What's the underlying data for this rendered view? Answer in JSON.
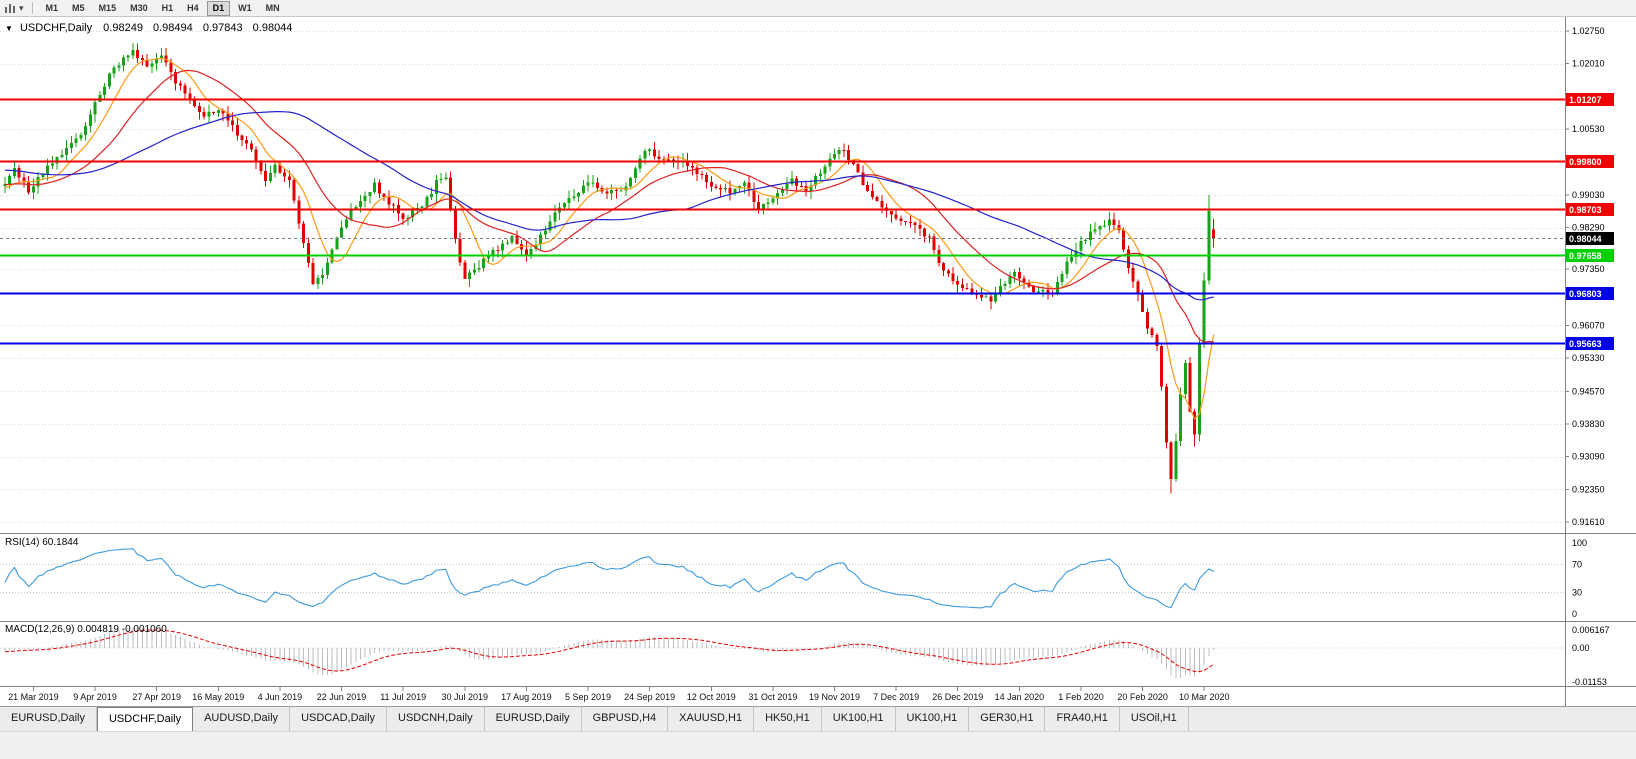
{
  "icons": {
    "collapse_arrow": "▼",
    "dropdown_caret": "▾"
  },
  "toolbar": {
    "timeframes": [
      "M1",
      "M5",
      "M15",
      "M30",
      "H1",
      "H4",
      "D1",
      "W1",
      "MN"
    ],
    "active_timeframe": "D1"
  },
  "chart": {
    "title": "USDCHF,Daily",
    "open": "0.98249",
    "high": "0.98494",
    "low": "0.97843",
    "close": "0.98044"
  },
  "rsi": {
    "label": "RSI(14) 60.1844",
    "period": 14,
    "last_value": 60.1844,
    "axis_labels": [
      "100",
      "70",
      "30",
      "0"
    ],
    "line_color": "#3E9ADE"
  },
  "macd": {
    "label": "MACD(12,26,9) 0.004819 -0.001060",
    "params": [
      12,
      26,
      9
    ],
    "last_value": 0.004819,
    "last_signal": -0.00106,
    "axis_labels": [
      "0.006167",
      "0.00",
      "-0.01153"
    ],
    "histogram_color": "#bdbdbd",
    "signal_color": "#e00000"
  },
  "tabs": {
    "active": "USDCHF,Daily",
    "items": [
      "EURUSD,Daily",
      "USDCHF,Daily",
      "AUDUSD,Daily",
      "USDCAD,Daily",
      "USDCNH,Daily",
      "EURUSD,Daily",
      "GBPUSD,H4",
      "XAUUSD,H1",
      "HK50,H1",
      "UK100,H1",
      "UK100,H1",
      "GER30,H1",
      "FRA40,H1",
      "USOil,H1"
    ]
  },
  "chart_data": {
    "type": "candlestick",
    "symbol": "USDCHF",
    "period": "Daily",
    "bar_count": 256,
    "bull_color": "#17A317",
    "bear_color": "#E00000",
    "price_ticks": [
      "1.02750",
      "1.02010",
      "1.00530",
      "0.99030",
      "0.98290",
      "0.97350",
      "0.96070",
      "0.95330",
      "0.94570",
      "0.93830",
      "0.93090",
      "0.92350",
      "0.91610"
    ],
    "date_labels": [
      "21 Mar 2019",
      "9 Apr 2019",
      "27 Apr 2019",
      "16 May 2019",
      "4 Jun 2019",
      "22 Jun 2019",
      "11 Jul 2019",
      "30 Jul 2019",
      "17 Aug 2019",
      "5 Sep 2019",
      "24 Sep 2019",
      "12 Oct 2019",
      "31 Oct 2019",
      "19 Nov 2019",
      "7 Dec 2019",
      "26 Dec 2019",
      "14 Jan 2020",
      "1 Feb 2020",
      "20 Feb 2020",
      "10 Mar 2020"
    ],
    "levels": [
      {
        "price": 1.01207,
        "label": "1.01207",
        "color": "#F00000",
        "width": 2,
        "style": "solid"
      },
      {
        "price": 0.998,
        "label": "0.99800",
        "color": "#F00000",
        "width": 2,
        "style": "solid"
      },
      {
        "price": 0.98703,
        "label": "0.98703",
        "color": "#F00000",
        "width": 2,
        "style": "solid"
      },
      {
        "price": 0.98044,
        "label": "0.98044",
        "color": "#000000",
        "width": 1,
        "style": "current"
      },
      {
        "price": 0.97658,
        "label": "0.97658",
        "color": "#00D000",
        "width": 2,
        "style": "solid"
      },
      {
        "price": 0.96803,
        "label": "0.96803",
        "color": "#0000E8",
        "width": 2,
        "style": "solid"
      },
      {
        "price": 0.95663,
        "label": "0.95663",
        "color": "#0000E8",
        "width": 2,
        "style": "solid"
      }
    ],
    "ma_lines": [
      {
        "period": 8,
        "color": "#FF9914"
      },
      {
        "period": 20,
        "color": "#DD2222"
      },
      {
        "period": 50,
        "color": "#2323CC"
      }
    ],
    "last_bar": {
      "open": 0.98249,
      "high": 0.98494,
      "low": 0.97843,
      "close": 0.98044
    },
    "prehistory_anchors": [
      [
        -60,
        0.9975
      ],
      [
        -40,
        1.0005
      ],
      [
        -20,
        0.9945
      ],
      [
        -5,
        0.9915
      ]
    ],
    "anchors": [
      [
        0,
        0.9925
      ],
      [
        2,
        0.9958
      ],
      [
        5,
        0.9908
      ],
      [
        8,
        0.9952
      ],
      [
        11,
        0.9988
      ],
      [
        13,
        1.0005
      ],
      [
        16,
        1.0042
      ],
      [
        19,
        1.0108
      ],
      [
        22,
        1.0172
      ],
      [
        25,
        1.0218
      ],
      [
        27,
        1.0232
      ],
      [
        30,
        1.0188
      ],
      [
        33,
        1.0215
      ],
      [
        36,
        1.0162
      ],
      [
        39,
        1.0118
      ],
      [
        42,
        1.0082
      ],
      [
        45,
        1.0096
      ],
      [
        49,
        1.0042
      ],
      [
        52,
        1.0006
      ],
      [
        55,
        0.9932
      ],
      [
        57,
        0.9966
      ],
      [
        60,
        0.9936
      ],
      [
        63,
        0.9792
      ],
      [
        65,
        0.97
      ],
      [
        67,
        0.9726
      ],
      [
        70,
        0.9802
      ],
      [
        73,
        0.9868
      ],
      [
        76,
        0.9906
      ],
      [
        78,
        0.9926
      ],
      [
        81,
        0.9886
      ],
      [
        84,
        0.9852
      ],
      [
        88,
        0.9876
      ],
      [
        91,
        0.993
      ],
      [
        93,
        0.9946
      ],
      [
        95,
        0.9802
      ],
      [
        97,
        0.9712
      ],
      [
        100,
        0.9742
      ],
      [
        104,
        0.9782
      ],
      [
        107,
        0.9806
      ],
      [
        110,
        0.9766
      ],
      [
        114,
        0.9826
      ],
      [
        117,
        0.9876
      ],
      [
        120,
        0.9896
      ],
      [
        123,
        0.9936
      ],
      [
        127,
        0.9906
      ],
      [
        130,
        0.9916
      ],
      [
        133,
        0.9956
      ],
      [
        135,
        1.0006
      ],
      [
        138,
        0.9986
      ],
      [
        143,
        0.9976
      ],
      [
        146,
        0.9952
      ],
      [
        149,
        0.9926
      ],
      [
        153,
        0.9912
      ],
      [
        156,
        0.9926
      ],
      [
        159,
        0.9872
      ],
      [
        163,
        0.9906
      ],
      [
        166,
        0.9936
      ],
      [
        169,
        0.9906
      ],
      [
        172,
        0.9956
      ],
      [
        175,
        0.9992
      ],
      [
        177,
        1.0006
      ],
      [
        180,
        0.9952
      ],
      [
        182,
        0.9906
      ],
      [
        185,
        0.9872
      ],
      [
        188,
        0.9852
      ],
      [
        192,
        0.9832
      ],
      [
        195,
        0.9802
      ],
      [
        198,
        0.9732
      ],
      [
        201,
        0.9702
      ],
      [
        205,
        0.9676
      ],
      [
        208,
        0.9666
      ],
      [
        211,
        0.9702
      ],
      [
        213,
        0.9726
      ],
      [
        216,
        0.9692
      ],
      [
        221,
        0.9676
      ],
      [
        224,
        0.9746
      ],
      [
        227,
        0.9792
      ],
      [
        230,
        0.9826
      ],
      [
        233,
        0.9842
      ],
      [
        235,
        0.9822
      ],
      [
        237,
        0.9742
      ],
      [
        239,
        0.9672
      ],
      [
        241,
        0.9602
      ],
      [
        243,
        0.9555
      ],
      [
        244,
        0.9475
      ],
      [
        245,
        0.9345
      ],
      [
        246,
        0.9265
      ],
      [
        247,
        0.9345
      ],
      [
        248,
        0.9455
      ],
      [
        249,
        0.9515
      ],
      [
        250,
        0.9405
      ],
      [
        251,
        0.9355
      ],
      [
        252,
        0.956
      ],
      [
        253,
        0.9705
      ],
      [
        254,
        0.986
      ],
      [
        255,
        0.9804
      ]
    ],
    "overrides": {
      "246": {
        "low": 0.9225
      },
      "251": {
        "low": 0.9332
      },
      "254": {
        "high": 0.9903
      },
      "255": {
        "open": 0.98249,
        "high": 0.98494,
        "low": 0.97843,
        "close": 0.98044
      }
    }
  }
}
